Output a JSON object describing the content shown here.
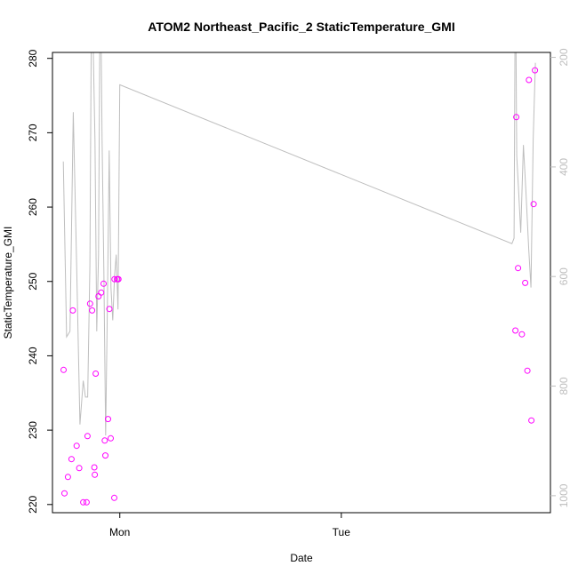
{
  "chart_data": {
    "type": "scatter",
    "title": "ATOM2 Northeast_Pacific_2 StaticTemperature_GMI",
    "xlabel": "Date",
    "ylabel": "StaticTemperature_GMI",
    "x_axis": {
      "type": "time",
      "min": -0.304,
      "max": 1.944,
      "ticks": [
        {
          "value": 0,
          "label": "Mon"
        },
        {
          "value": 1,
          "label": "Tue"
        }
      ]
    },
    "y_left": {
      "min": 218.9,
      "max": 280.8,
      "ticks": [
        220,
        230,
        240,
        250,
        260,
        270,
        280
      ]
    },
    "y_right": {
      "min": 1031,
      "max": 191,
      "ticks": [
        200,
        400,
        600,
        800,
        1000
      ],
      "color": "#bebebe"
    },
    "grid": false,
    "series": [
      {
        "kind": "points",
        "color": "#ff00ff",
        "marker": "open-circle",
        "axis": "left",
        "x": [
          -0.254,
          -0.25,
          -0.234,
          -0.218,
          -0.212,
          -0.195,
          -0.183,
          -0.165,
          -0.15,
          -0.146,
          -0.134,
          -0.125,
          -0.115,
          -0.113,
          -0.109,
          -0.096,
          -0.084,
          -0.073,
          -0.068,
          -0.065,
          -0.053,
          -0.047,
          -0.041,
          -0.025,
          -0.024,
          -0.012,
          -0.007,
          -0.006,
          1.786,
          1.79,
          1.798,
          1.815,
          1.83,
          1.84,
          1.847,
          1.858,
          1.868,
          1.874
        ],
        "y": [
          238.1,
          221.5,
          223.7,
          226.1,
          246.1,
          227.9,
          224.9,
          220.3,
          220.3,
          229.2,
          247.0,
          246.1,
          225.0,
          224.0,
          237.6,
          248.0,
          248.5,
          249.7,
          228.6,
          226.6,
          231.5,
          246.3,
          228.9,
          220.9,
          250.3,
          250.3,
          250.3,
          250.3,
          243.4,
          272.1,
          251.8,
          242.9,
          249.8,
          238.0,
          277.1,
          231.3,
          260.4,
          278.4
        ]
      },
      {
        "kind": "line",
        "color": "#bebebe",
        "axis": "right",
        "x": [
          -0.255,
          -0.24,
          -0.225,
          -0.21,
          -0.195,
          -0.18,
          -0.165,
          -0.155,
          -0.145,
          -0.135,
          -0.128,
          -0.12,
          -0.112,
          -0.104,
          -0.096,
          -0.088,
          -0.08,
          -0.072,
          -0.064,
          -0.056,
          -0.048,
          -0.04,
          -0.032,
          -0.024,
          -0.016,
          -0.008,
          0.0,
          1.77,
          1.78,
          1.786,
          1.792,
          1.8,
          1.81,
          1.822,
          1.834,
          1.846,
          1.856,
          1.866,
          1.876
        ],
        "y": [
          390,
          710,
          700,
          300,
          580,
          870,
          790,
          820,
          820,
          580,
          110,
          180,
          350,
          700,
          560,
          10,
          350,
          590,
          890,
          650,
          370,
          620,
          680,
          600,
          560,
          660,
          250,
          540,
          530,
          10,
          380,
          440,
          520,
          360,
          450,
          550,
          620,
          350,
          210
        ]
      }
    ]
  }
}
